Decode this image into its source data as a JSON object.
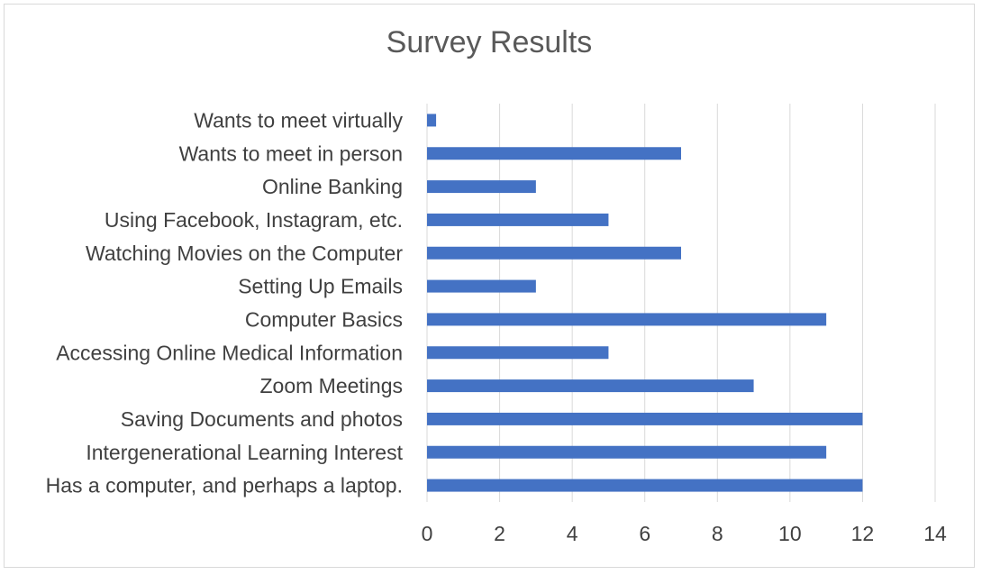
{
  "chart_data": {
    "type": "bar",
    "orientation": "horizontal",
    "title": "Survey Results",
    "xlabel": "",
    "ylabel": "",
    "categories": [
      "Wants to meet virtually",
      "Wants to meet in person",
      "Online Banking",
      "Using Facebook, Instagram, etc.",
      "Watching Movies on the Computer",
      "Setting Up Emails",
      "Computer Basics",
      "Accessing Online Medical Information",
      "Zoom Meetings",
      "Saving Documents and photos",
      "Intergenerational Learning Interest",
      "Has a computer, and perhaps a laptop."
    ],
    "values": [
      0.25,
      7,
      3,
      5,
      7,
      3,
      11,
      5,
      9,
      12,
      11,
      12
    ],
    "xlim": [
      0,
      14
    ],
    "xticks": [
      0,
      2,
      4,
      6,
      8,
      10,
      12,
      14
    ],
    "grid": true,
    "legend": "none",
    "bar_color": "#4472c4",
    "grid_color": "#d9d9d9"
  }
}
